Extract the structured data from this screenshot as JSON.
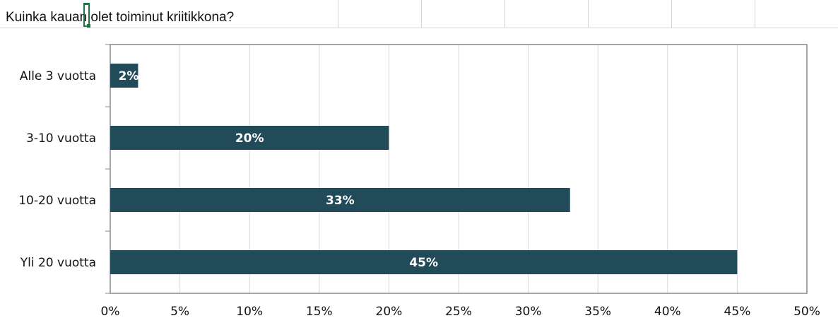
{
  "sheet": {
    "title_cell": "Kuinka kauan olet toiminut kriitikkona?"
  },
  "chart_data": {
    "type": "bar",
    "orientation": "horizontal",
    "categories": [
      "Alle 3 vuotta",
      "3-10 vuotta",
      "10-20 vuotta",
      "Yli 20 vuotta"
    ],
    "values": [
      2,
      20,
      33,
      45
    ],
    "data_labels": [
      "2%",
      "20%",
      "33%",
      "45%"
    ],
    "xlim": [
      0,
      50
    ],
    "x_ticks": [
      "0%",
      "5%",
      "10%",
      "15%",
      "20%",
      "25%",
      "30%",
      "35%",
      "40%",
      "45%",
      "50%"
    ],
    "grid": true,
    "bar_color": "#224b5a",
    "grid_color": "#d9d9d9",
    "axis_color": "#888888"
  }
}
